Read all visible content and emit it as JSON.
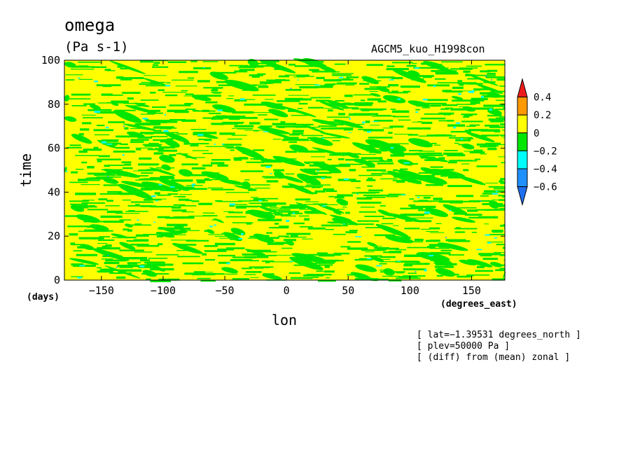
{
  "chart_data": {
    "type": "heatmap",
    "title": "omega",
    "units": "(Pa s-1)",
    "model": "AGCM5_kuo_H1998con",
    "xlabel": "lon",
    "x_units": "(degrees_east)",
    "ylabel": "time",
    "y_units": "(days)",
    "xlim": [
      -180,
      177
    ],
    "ylim": [
      0,
      100
    ],
    "x_ticks": [
      -150,
      -100,
      -50,
      0,
      50,
      100,
      150
    ],
    "y_ticks": [
      0,
      20,
      40,
      60,
      80,
      100
    ],
    "x_tick_labels": [
      "−150",
      "−100",
      "−50",
      "0",
      "50",
      "100",
      "150"
    ],
    "y_tick_labels": [
      "0",
      "20",
      "40",
      "60",
      "80",
      "100"
    ],
    "colorbar": {
      "levels": [
        0.4,
        0.2,
        0,
        -0.2,
        -0.4,
        -0.6
      ],
      "labels": [
        "0.4",
        "0.2",
        "0",
        "−0.2",
        "−0.4",
        "−0.6"
      ],
      "colors": [
        "#ee1c1c",
        "#ff9900",
        "#ffff00",
        "#00e600",
        "#00ffff",
        "#1e90ff",
        "#1e6ff0"
      ]
    },
    "field_colors": {
      "positive": "#ffff00",
      "negative": "#00e600",
      "strong_negative": "#00ffff",
      "strongest_negative": "#1e90ff"
    },
    "annotations": [
      "[ lat=−1.39531 degrees_north ]",
      "[ plev=50000 Pa ]",
      "[ (diff) from (mean) zonal ]"
    ]
  }
}
